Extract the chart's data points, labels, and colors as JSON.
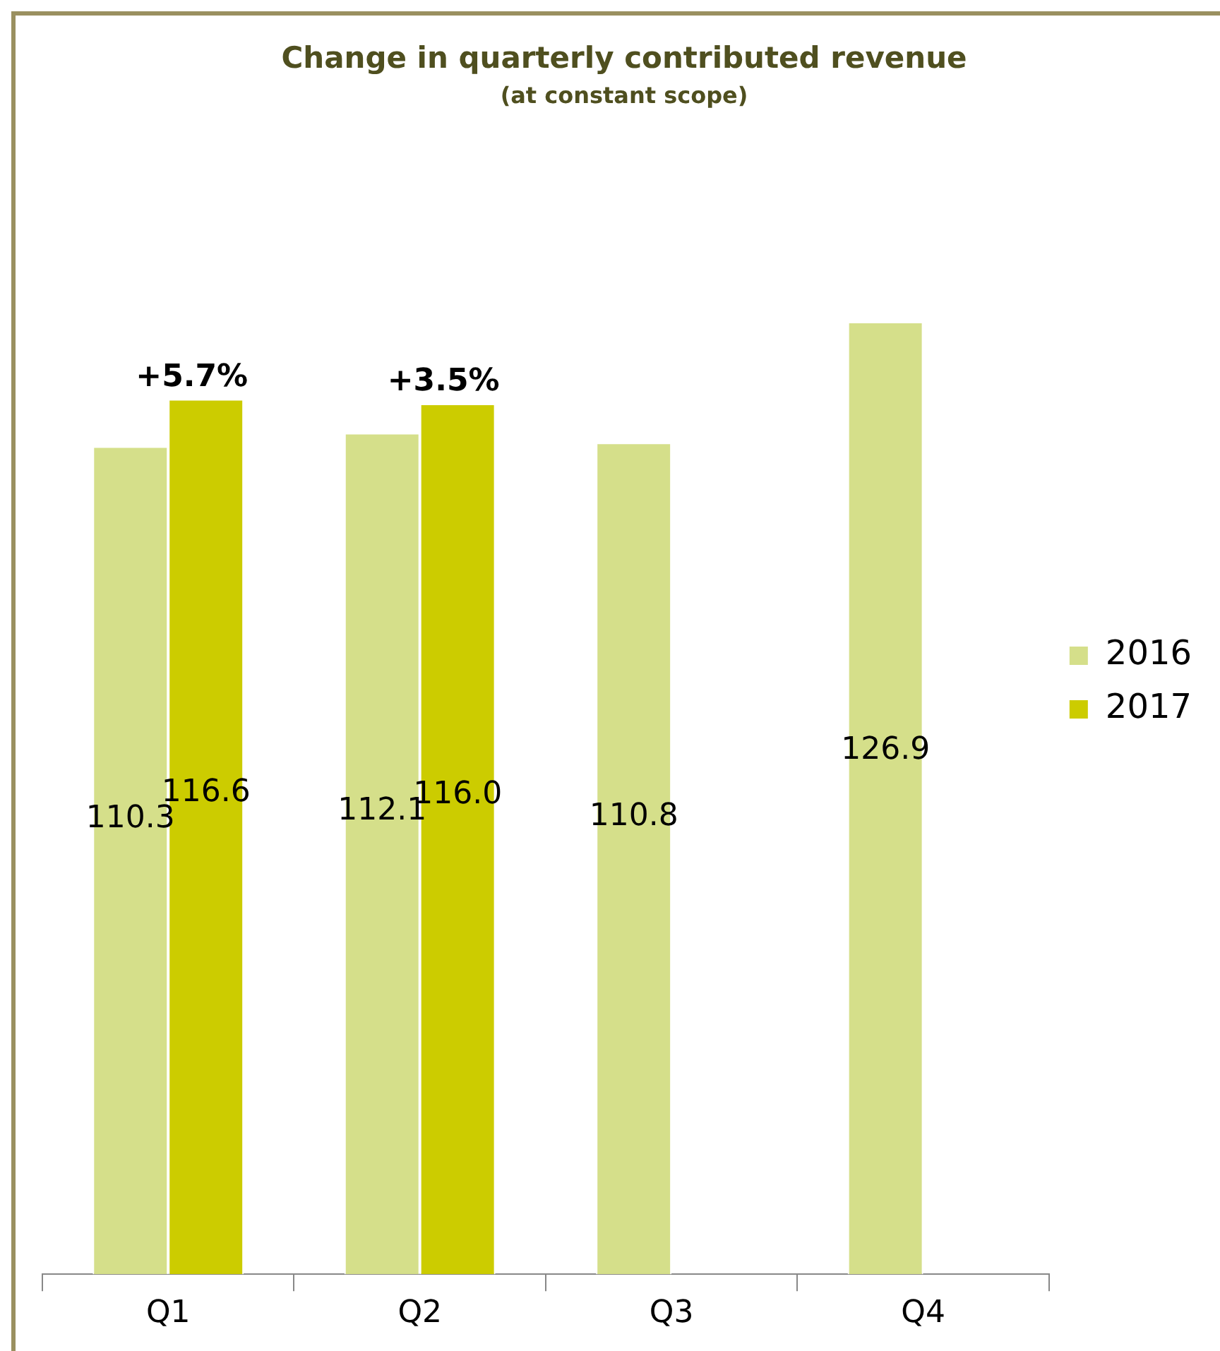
{
  "chart_data": {
    "type": "bar",
    "title": "Change in quarterly contributed revenue",
    "subtitle": "(at constant scope)",
    "categories": [
      "Q1",
      "Q2",
      "Q3",
      "Q4"
    ],
    "series": [
      {
        "name": "2016",
        "color": "#d5df8a",
        "values": [
          110.3,
          112.1,
          110.8,
          126.9
        ],
        "value_labels": [
          "110.3",
          "112.1",
          "110.8",
          "126.9"
        ]
      },
      {
        "name": "2017",
        "color": "#cccc00",
        "values": [
          116.6,
          116.0,
          null,
          null
        ],
        "value_labels": [
          "116.6",
          "116.0",
          null,
          null
        ]
      }
    ],
    "tick_labels": "x",
    "grid": false,
    "legend": "right",
    "annotations": [
      {
        "text": "+5.7%",
        "x": "Q1",
        "y": 116.6
      },
      {
        "text": "+3.5%",
        "x": "Q2",
        "y": 116.0
      }
    ]
  }
}
